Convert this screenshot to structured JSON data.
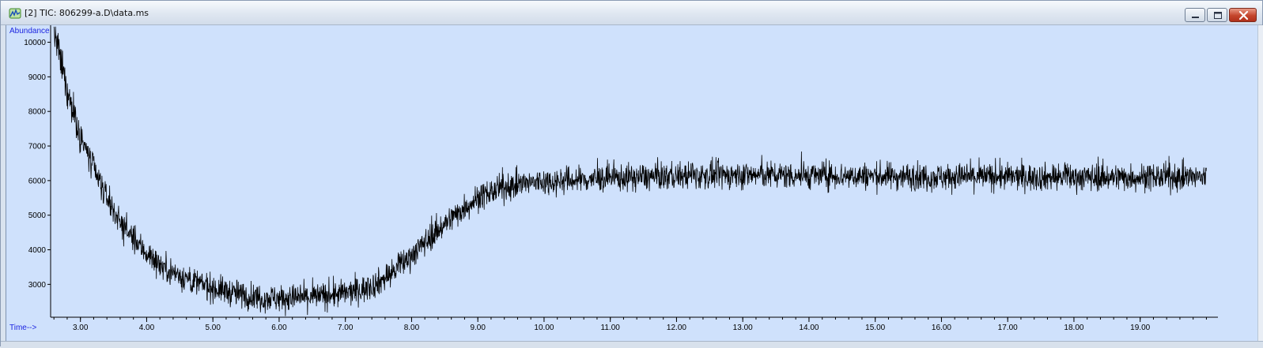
{
  "window": {
    "title": "[2] TIC: 806299-a.D\\data.ms",
    "icon": "chromatogram-app-icon",
    "buttons": [
      "minimize",
      "restore",
      "close"
    ]
  },
  "colors": {
    "plot_background": "#cfe1fc",
    "trace": "#000000",
    "axis_title": "#1c25e0"
  },
  "chart_data": {
    "type": "line",
    "ylabel": "Abundance",
    "xlabel": "Time-->",
    "xlim": [
      2.55,
      20.15
    ],
    "ylim": [
      2050,
      10400
    ],
    "x_ticks": [
      3.0,
      4.0,
      5.0,
      6.0,
      7.0,
      8.0,
      9.0,
      10.0,
      11.0,
      12.0,
      13.0,
      14.0,
      15.0,
      16.0,
      17.0,
      18.0,
      19.0
    ],
    "x_tick_labels": [
      "3.00",
      "4.00",
      "5.00",
      "6.00",
      "7.00",
      "8.00",
      "9.00",
      "10.00",
      "11.00",
      "12.00",
      "13.00",
      "14.00",
      "15.00",
      "16.00",
      "17.00",
      "18.00",
      "19.00"
    ],
    "y_ticks": [
      3000,
      4000,
      5000,
      6000,
      7000,
      8000,
      9000,
      10000
    ],
    "y_tick_labels": [
      "3000",
      "4000",
      "5000",
      "6000",
      "7000",
      "8000",
      "9000",
      "10000"
    ],
    "grid": false,
    "legend": "none",
    "series": [
      {
        "x": [
          2.6,
          2.8,
          3.0,
          3.2,
          3.4,
          3.6,
          3.8,
          4.0,
          4.25,
          4.5,
          4.75,
          5.0,
          5.25,
          5.5,
          5.75,
          6.0,
          6.25,
          6.5,
          6.75,
          7.0,
          7.25,
          7.5,
          7.75,
          8.0,
          8.25,
          8.5,
          8.75,
          9.0,
          9.25,
          9.5,
          9.75,
          10.0,
          10.5,
          11.0,
          11.5,
          12.0,
          12.5,
          13.0,
          13.5,
          14.0,
          14.5,
          15.0,
          15.5,
          16.0,
          16.5,
          17.0,
          17.5,
          18.0,
          18.5,
          19.0,
          19.5,
          20.0
        ],
        "y": [
          10300,
          8600,
          7300,
          6300,
          5500,
          4800,
          4300,
          3900,
          3500,
          3250,
          3050,
          2900,
          2780,
          2680,
          2620,
          2600,
          2610,
          2640,
          2680,
          2740,
          2850,
          3050,
          3400,
          3850,
          4300,
          4750,
          5150,
          5500,
          5700,
          5850,
          5930,
          5970,
          6020,
          6070,
          6100,
          6130,
          6150,
          6160,
          6160,
          6150,
          6140,
          6130,
          6120,
          6110,
          6110,
          6110,
          6100,
          6100,
          6100,
          6100,
          6100,
          6100
        ],
        "noise_amplitude": 260
      }
    ]
  }
}
